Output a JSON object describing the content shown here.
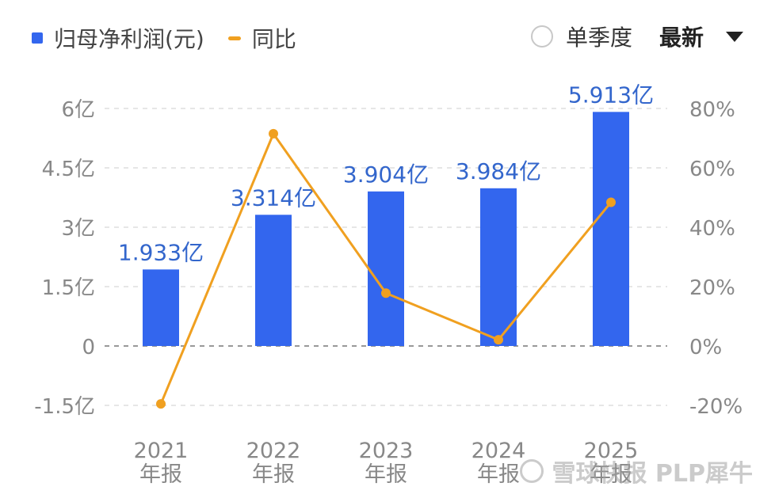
{
  "legend": {
    "bar_label": "归母净利润(元)",
    "line_label": "同比"
  },
  "controls": {
    "single_quarter_label": "单季度",
    "dropdown_label": "最新"
  },
  "watermark": "雪球快报 PLP犀牛",
  "colors": {
    "bar": "#3366ee",
    "line": "#f0a020",
    "bar_label": "#3366cc",
    "axis_text": "#888888",
    "grid": "#dddddd"
  },
  "chart_data": {
    "type": "bar",
    "categories": [
      "2021\n年报",
      "2022\n年报",
      "2023\n年报",
      "2024\n年报",
      "2025\n年报"
    ],
    "series": [
      {
        "name": "归母净利润(元)",
        "type": "bar",
        "axis": "left",
        "values": [
          1.933,
          3.314,
          3.904,
          3.984,
          5.913
        ],
        "labels": [
          "1.933亿",
          "3.314亿",
          "3.904亿",
          "3.984亿",
          "5.913亿"
        ]
      },
      {
        "name": "同比",
        "type": "line",
        "axis": "right",
        "values": [
          -19.5,
          71.5,
          17.8,
          2.1,
          48.4
        ]
      }
    ],
    "left_axis": {
      "ylim": [
        -1.5,
        6
      ],
      "ticks": [
        -1.5,
        0,
        1.5,
        3,
        4.5,
        6
      ],
      "tick_labels": [
        "-1.5亿",
        "0",
        "1.5亿",
        "3亿",
        "4.5亿",
        "6亿"
      ]
    },
    "right_axis": {
      "ylim": [
        -20,
        80
      ],
      "ticks": [
        -20,
        0,
        20,
        40,
        60,
        80
      ],
      "tick_labels": [
        "-20%",
        "0%",
        "20%",
        "40%",
        "60%",
        "80%"
      ]
    },
    "grid": true,
    "legend_position": "top-left"
  }
}
